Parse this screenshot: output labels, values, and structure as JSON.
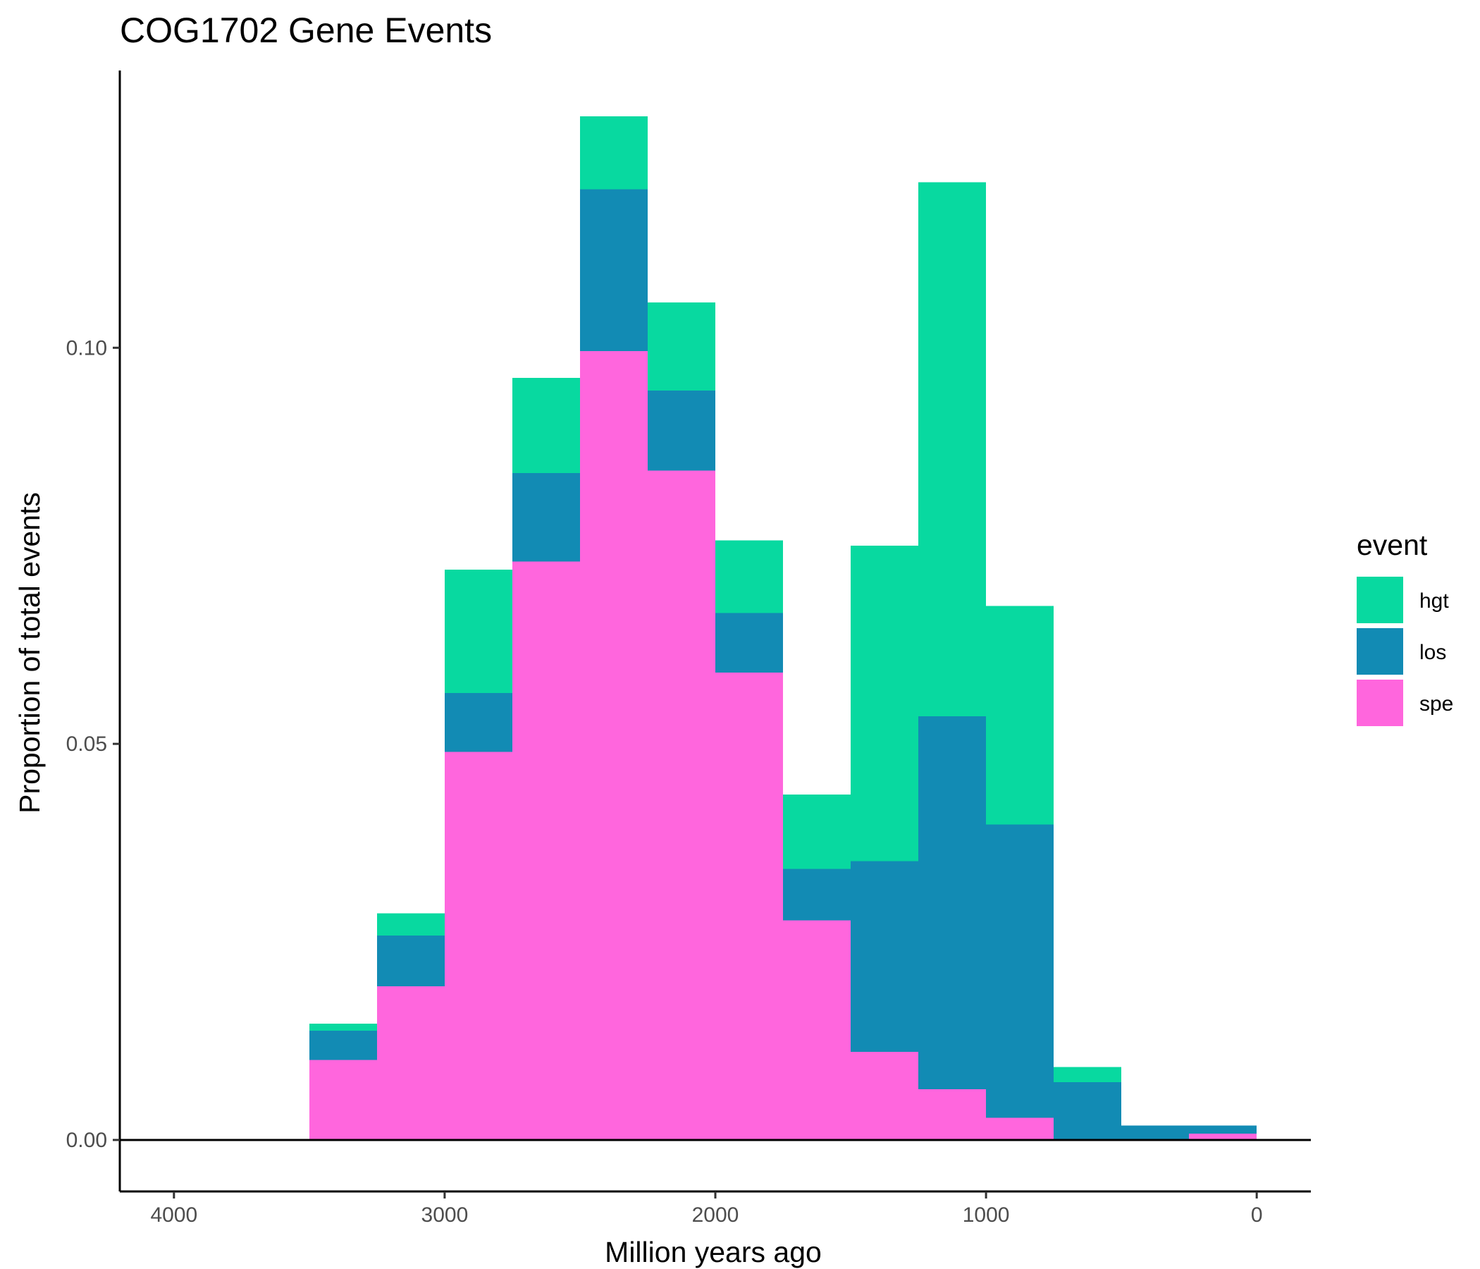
{
  "chart_data": {
    "type": "bar",
    "stacked": true,
    "title": "COG1702 Gene Events",
    "xlabel": "Million years ago",
    "ylabel": "Proportion of total events",
    "x_reversed": true,
    "xlim": [
      4200,
      -200
    ],
    "ylim": [
      -0.0065,
      0.135
    ],
    "x_ticks": [
      4000,
      3000,
      2000,
      1000,
      0
    ],
    "x_tick_labels": [
      "4000",
      "3000",
      "2000",
      "1000",
      "0"
    ],
    "y_ticks": [
      0.0,
      0.05,
      0.1
    ],
    "y_tick_labels": [
      "0.00",
      "0.05",
      "0.10"
    ],
    "grid": false,
    "legend": {
      "title": "event",
      "placement": "right"
    },
    "bins": [
      [
        3500,
        3250
      ],
      [
        3250,
        3000
      ],
      [
        3000,
        2750
      ],
      [
        2750,
        2500
      ],
      [
        2500,
        2250
      ],
      [
        2250,
        2000
      ],
      [
        2000,
        1750
      ],
      [
        1750,
        1500
      ],
      [
        1500,
        1250
      ],
      [
        1250,
        1000
      ],
      [
        1000,
        750
      ],
      [
        750,
        500
      ],
      [
        500,
        250
      ],
      [
        250,
        0
      ]
    ],
    "series": [
      {
        "name": "spe",
        "color": "#FF66DD",
        "values": [
          0.0101,
          0.0194,
          0.049,
          0.073,
          0.0996,
          0.0845,
          0.059,
          0.0277,
          0.0111,
          0.0064,
          0.0028,
          0.0,
          0.0,
          0.0008
        ]
      },
      {
        "name": "los",
        "color": "#128BB4",
        "values": [
          0.0037,
          0.0064,
          0.0074,
          0.0112,
          0.0204,
          0.0101,
          0.0075,
          0.0065,
          0.0241,
          0.0471,
          0.037,
          0.0073,
          0.0018,
          0.001
        ]
      },
      {
        "name": "hgt",
        "color": "#08D9A0",
        "values": [
          0.0009,
          0.0028,
          0.0156,
          0.012,
          0.0092,
          0.0111,
          0.0092,
          0.0094,
          0.0398,
          0.0674,
          0.0276,
          0.0019,
          0.0,
          0.0
        ]
      }
    ],
    "legend_order": [
      "hgt",
      "los",
      "spe"
    ]
  }
}
